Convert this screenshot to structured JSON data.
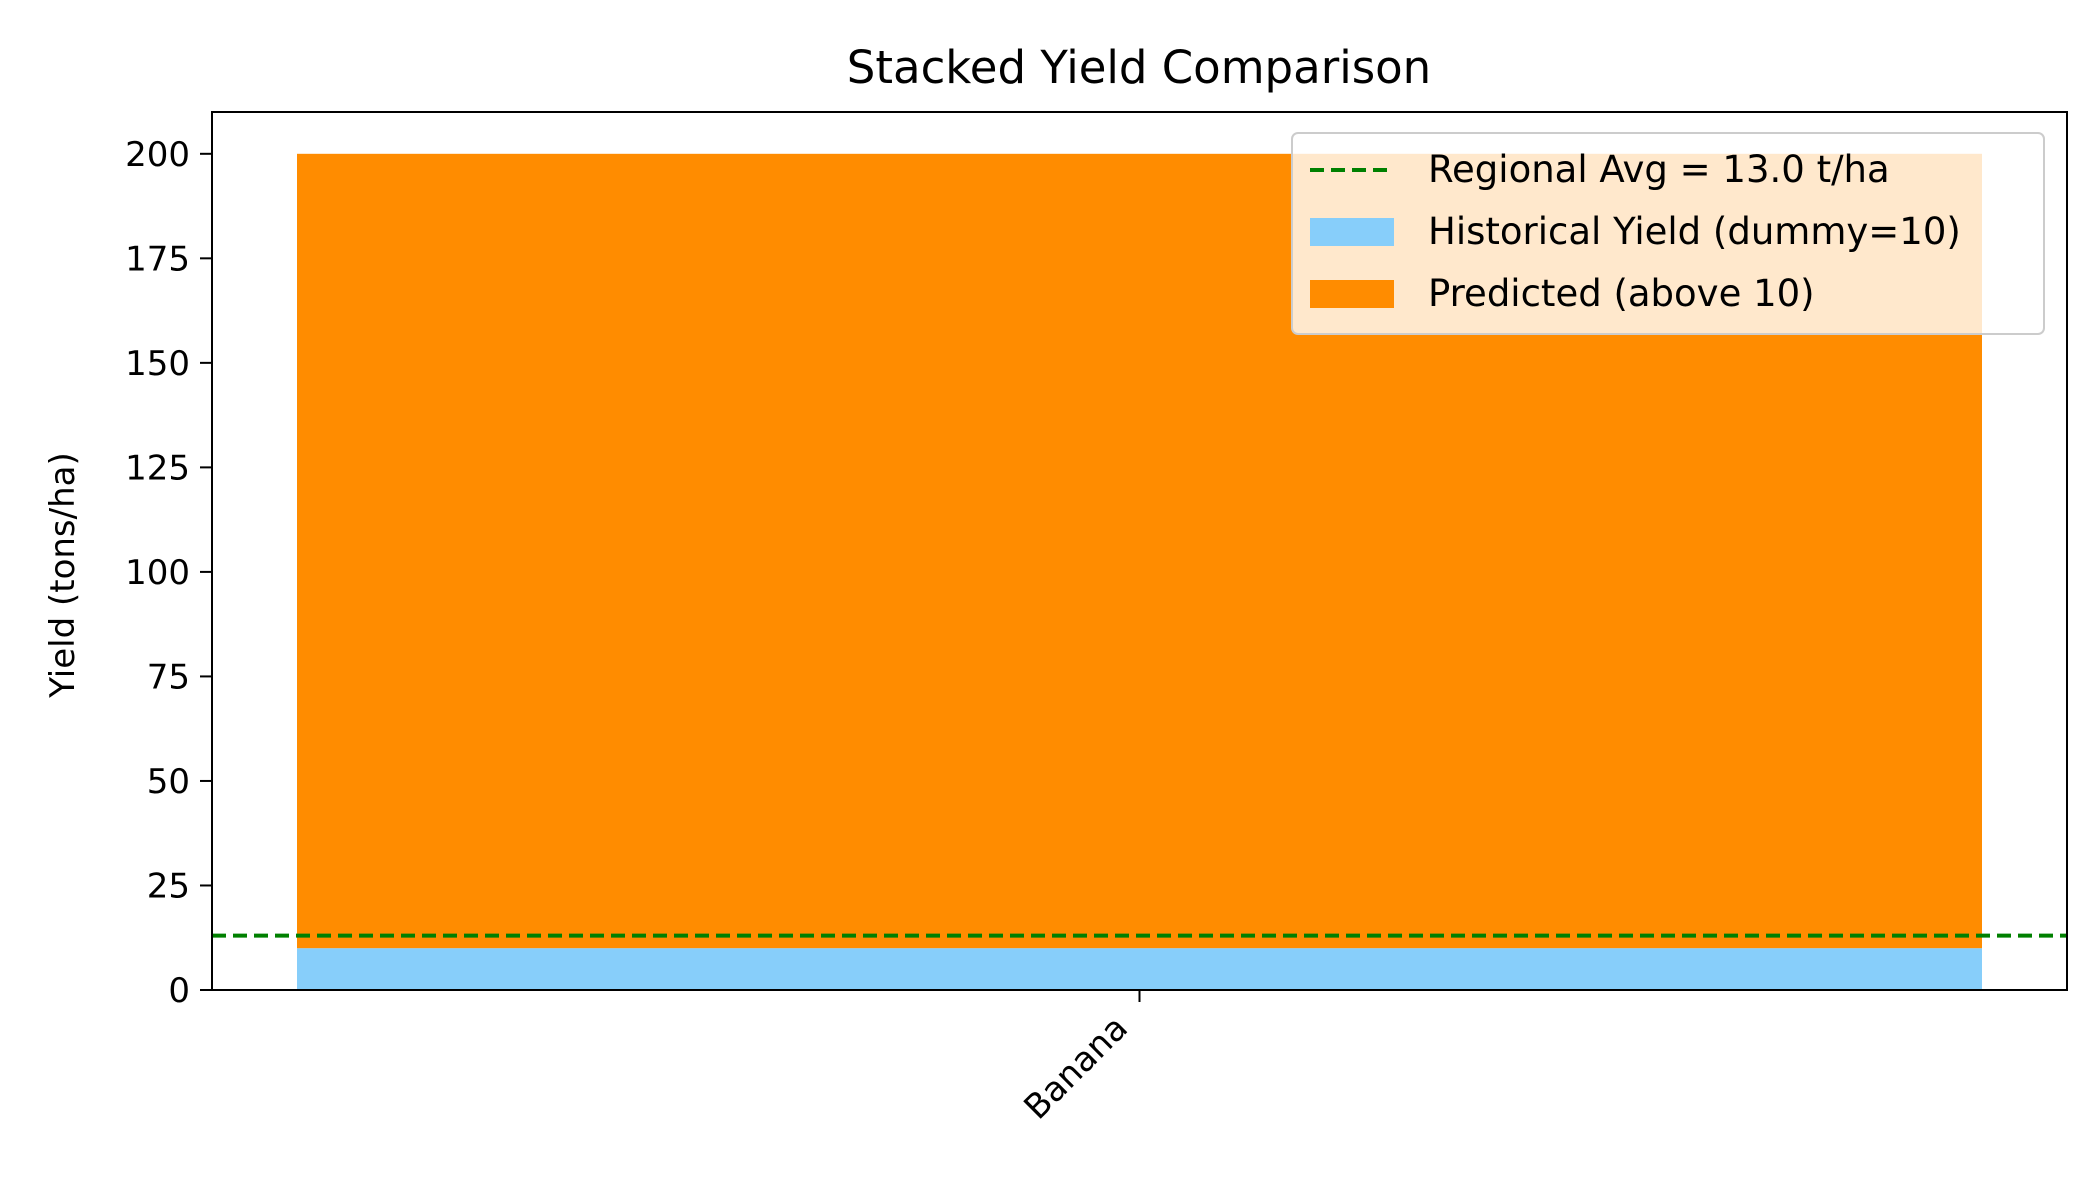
{
  "chart_data": {
    "type": "bar",
    "stacked": true,
    "title": "Stacked Yield Comparison",
    "xlabel": "",
    "ylabel": "Yield (tons/ha)",
    "categories": [
      "Banana"
    ],
    "ylim": [
      0,
      210
    ],
    "yticks": [
      0,
      25,
      50,
      75,
      100,
      125,
      150,
      175,
      200
    ],
    "grid": false,
    "legend_position": "top-right",
    "series": [
      {
        "name": "Historical Yield (dummy=10)",
        "values": [
          10
        ],
        "color": "#87cefa"
      },
      {
        "name": "Predicted (above 10)",
        "values": [
          190
        ],
        "color": "#ff8c00"
      }
    ],
    "reference_line": {
      "label": "Regional Avg = 13.0 t/ha",
      "value": 13.0,
      "color": "#008000",
      "style": "dashed"
    }
  }
}
